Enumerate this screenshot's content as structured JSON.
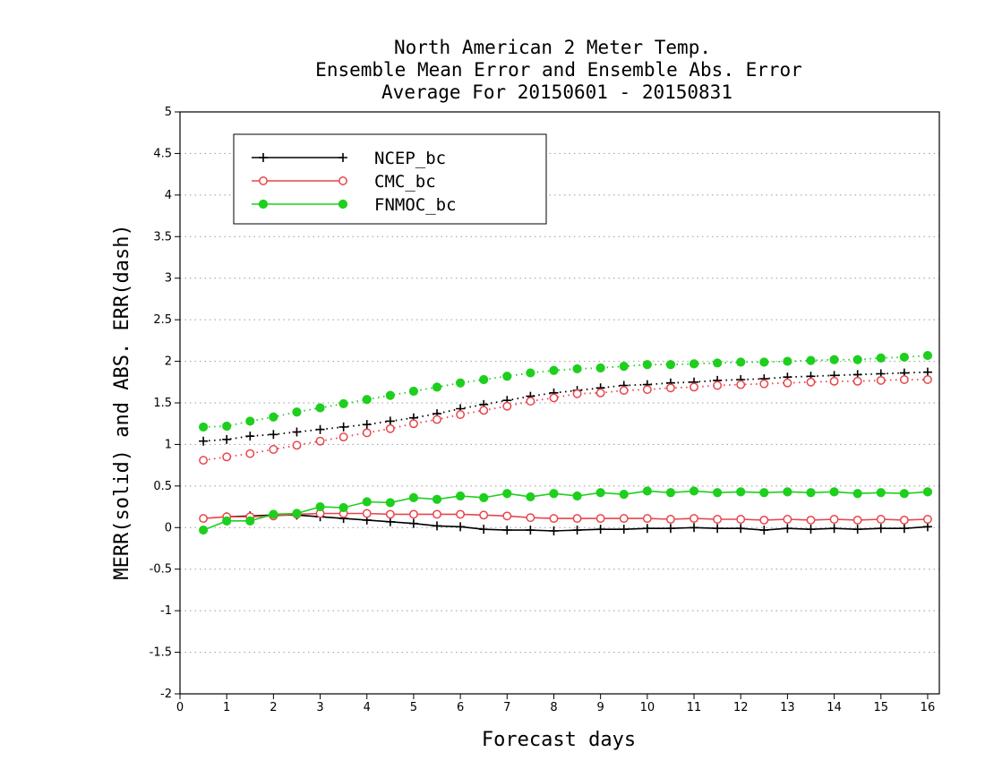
{
  "chart_data": {
    "type": "line",
    "title": [
      "North American 2 Meter Temp.",
      "Ensemble Mean Error and Ensemble Abs. Error",
      "Average For 20150601 - 20150831"
    ],
    "xlabel": "Forecast days",
    "ylabel": "MERR(solid) and ABS. ERR(dash)",
    "xlim": [
      0,
      16.25
    ],
    "ylim": [
      -2,
      5
    ],
    "xticks": [
      0,
      1,
      2,
      3,
      4,
      5,
      6,
      7,
      8,
      9,
      10,
      11,
      12,
      13,
      14,
      15,
      16
    ],
    "yticks": [
      -2,
      -1.5,
      -1,
      -0.5,
      0,
      0.5,
      1,
      1.5,
      2,
      2.5,
      3,
      3.5,
      4,
      4.5,
      5
    ],
    "ytick_labels": [
      "-2",
      "-1.5",
      "-1",
      "-0.5",
      "0",
      "0.5",
      "1",
      "1.5",
      "2",
      "2.5",
      "3",
      "3.5",
      "4",
      "4.5",
      "5"
    ],
    "grid": "horizontal-dotted",
    "legend_position": "top-left",
    "x": [
      0.5,
      1,
      1.5,
      2,
      2.5,
      3,
      3.5,
      4,
      4.5,
      5,
      5.5,
      6,
      6.5,
      7,
      7.5,
      8,
      8.5,
      9,
      9.5,
      10,
      10.5,
      11,
      11.5,
      12,
      12.5,
      13,
      13.5,
      14,
      14.5,
      15,
      15.5,
      16
    ],
    "series": [
      {
        "name": "NCEP_bc",
        "color": "#000000",
        "marker": "plus",
        "merr": [
          null,
          0.13,
          0.14,
          0.15,
          0.15,
          0.13,
          0.11,
          0.09,
          0.07,
          0.05,
          0.02,
          0.01,
          -0.02,
          -0.03,
          -0.03,
          -0.04,
          -0.03,
          -0.02,
          -0.02,
          -0.01,
          -0.01,
          0.0,
          -0.01,
          -0.01,
          -0.03,
          -0.01,
          -0.02,
          -0.01,
          -0.02,
          -0.01,
          -0.01,
          0.01
        ],
        "abs_err": [
          1.04,
          1.06,
          1.1,
          1.12,
          1.15,
          1.18,
          1.21,
          1.24,
          1.28,
          1.32,
          1.37,
          1.43,
          1.48,
          1.53,
          1.58,
          1.62,
          1.65,
          1.68,
          1.71,
          1.72,
          1.74,
          1.75,
          1.77,
          1.78,
          1.79,
          1.81,
          1.82,
          1.83,
          1.84,
          1.85,
          1.86,
          1.87
        ]
      },
      {
        "name": "CMC_bc",
        "color": "#e8454c",
        "marker": "open-circle",
        "merr": [
          0.11,
          0.13,
          0.13,
          0.14,
          0.16,
          0.17,
          0.17,
          0.17,
          0.16,
          0.16,
          0.16,
          0.16,
          0.15,
          0.14,
          0.12,
          0.11,
          0.11,
          0.11,
          0.11,
          0.11,
          0.1,
          0.11,
          0.1,
          0.1,
          0.09,
          0.1,
          0.09,
          0.1,
          0.09,
          0.1,
          0.09,
          0.1
        ],
        "abs_err": [
          0.81,
          0.85,
          0.89,
          0.94,
          0.99,
          1.04,
          1.09,
          1.14,
          1.19,
          1.25,
          1.3,
          1.36,
          1.41,
          1.46,
          1.52,
          1.56,
          1.61,
          1.62,
          1.65,
          1.66,
          1.68,
          1.69,
          1.71,
          1.72,
          1.73,
          1.74,
          1.75,
          1.76,
          1.76,
          1.77,
          1.78,
          1.78
        ]
      },
      {
        "name": "FNMOC_bc",
        "color": "#1ecf1e",
        "marker": "filled-circle",
        "merr": [
          -0.03,
          0.08,
          0.08,
          0.16,
          0.17,
          0.25,
          0.24,
          0.31,
          0.3,
          0.36,
          0.34,
          0.38,
          0.36,
          0.41,
          0.37,
          0.41,
          0.38,
          0.42,
          0.4,
          0.44,
          0.42,
          0.44,
          0.42,
          0.43,
          0.42,
          0.43,
          0.42,
          0.43,
          0.41,
          0.42,
          0.41,
          0.43
        ],
        "abs_err": [
          1.21,
          1.22,
          1.28,
          1.33,
          1.39,
          1.44,
          1.49,
          1.54,
          1.59,
          1.64,
          1.69,
          1.74,
          1.78,
          1.82,
          1.86,
          1.89,
          1.91,
          1.92,
          1.94,
          1.96,
          1.96,
          1.97,
          1.98,
          1.99,
          1.99,
          2.0,
          2.01,
          2.02,
          2.02,
          2.04,
          2.05,
          2.07
        ]
      }
    ]
  }
}
